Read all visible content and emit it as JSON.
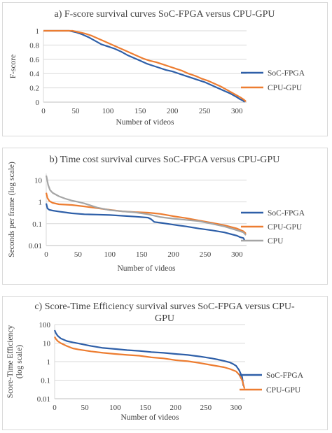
{
  "chart_data": [
    {
      "type": "line",
      "title": "a) F-score survival curves SoC-FPGA versus CPU-GPU",
      "xlabel": "Number of videos",
      "ylabel": "F-score",
      "xlim": [
        0,
        315
      ],
      "ylim": [
        0,
        1
      ],
      "y_scale": "linear",
      "x_ticks": [
        0,
        50,
        100,
        150,
        200,
        250,
        300
      ],
      "y_ticks": [
        0,
        0.2,
        0.4,
        0.6,
        0.8,
        1
      ],
      "y_tick_labels": [
        "0",
        "0.2",
        "0.4",
        "0.6",
        "0.8",
        "1"
      ],
      "grid": "horizontal",
      "legend": "right",
      "series": [
        {
          "name": "SoC-FPGA",
          "color": "#2e5fa8",
          "x": [
            0,
            40,
            50,
            60,
            70,
            80,
            90,
            100,
            110,
            120,
            130,
            140,
            150,
            160,
            170,
            180,
            190,
            200,
            210,
            220,
            230,
            240,
            250,
            260,
            270,
            280,
            290,
            300,
            305,
            310,
            312
          ],
          "y": [
            1,
            1,
            0.98,
            0.95,
            0.91,
            0.86,
            0.81,
            0.78,
            0.75,
            0.71,
            0.66,
            0.62,
            0.58,
            0.54,
            0.51,
            0.48,
            0.45,
            0.43,
            0.4,
            0.37,
            0.34,
            0.31,
            0.28,
            0.24,
            0.2,
            0.16,
            0.12,
            0.07,
            0.04,
            0.02,
            0
          ]
        },
        {
          "name": "CPU-GPU",
          "color": "#ed7d31",
          "x": [
            0,
            45,
            55,
            65,
            75,
            85,
            95,
            105,
            115,
            125,
            135,
            145,
            155,
            165,
            175,
            185,
            195,
            205,
            215,
            225,
            235,
            245,
            255,
            265,
            275,
            285,
            295,
            305,
            310,
            314
          ],
          "y": [
            1,
            1,
            0.98,
            0.96,
            0.93,
            0.89,
            0.85,
            0.81,
            0.77,
            0.73,
            0.69,
            0.65,
            0.61,
            0.58,
            0.56,
            0.53,
            0.5,
            0.47,
            0.44,
            0.4,
            0.37,
            0.33,
            0.3,
            0.26,
            0.22,
            0.17,
            0.12,
            0.07,
            0.04,
            0.01
          ]
        }
      ]
    },
    {
      "type": "line",
      "title": "b) Time cost survival curves SoC-FPGA versus CPU-GPU",
      "xlabel": "Number of videos",
      "ylabel": "Seconds per frame (log scale)",
      "xlim": [
        0,
        315
      ],
      "ylim": [
        0.01,
        20
      ],
      "y_scale": "log",
      "x_ticks": [
        0,
        50,
        100,
        150,
        200,
        250,
        300
      ],
      "y_ticks": [
        0.01,
        0.1,
        1,
        10
      ],
      "y_tick_labels": [
        "0.01",
        "0.1",
        "1",
        "10"
      ],
      "grid": "horizontal",
      "legend": "right",
      "series": [
        {
          "name": "SoC-FPGA",
          "color": "#2e5fa8",
          "x": [
            0,
            2,
            5,
            10,
            20,
            30,
            40,
            60,
            80,
            100,
            120,
            140,
            160,
            165,
            170,
            180,
            200,
            220,
            240,
            260,
            280,
            300,
            305,
            310,
            312
          ],
          "y": [
            0.85,
            0.5,
            0.43,
            0.4,
            0.36,
            0.33,
            0.3,
            0.27,
            0.26,
            0.25,
            0.23,
            0.21,
            0.19,
            0.16,
            0.12,
            0.11,
            0.09,
            0.075,
            0.06,
            0.05,
            0.04,
            0.028,
            0.024,
            0.022,
            0.017
          ]
        },
        {
          "name": "CPU-GPU",
          "color": "#ed7d31",
          "x": [
            0,
            2,
            5,
            10,
            20,
            30,
            40,
            60,
            80,
            100,
            120,
            140,
            160,
            170,
            180,
            200,
            220,
            240,
            260,
            280,
            300,
            310,
            314
          ],
          "y": [
            2.6,
            1.5,
            1.1,
            0.9,
            0.78,
            0.75,
            0.72,
            0.62,
            0.52,
            0.43,
            0.37,
            0.34,
            0.32,
            0.3,
            0.28,
            0.22,
            0.18,
            0.14,
            0.11,
            0.085,
            0.06,
            0.045,
            0.035
          ]
        },
        {
          "name": "CPU",
          "color": "#a5a5a5",
          "x": [
            0,
            1,
            3,
            6,
            10,
            20,
            30,
            40,
            50,
            60,
            80,
            100,
            120,
            140,
            160,
            180,
            200,
            220,
            240,
            260,
            280,
            300,
            310,
            314
          ],
          "y": [
            16,
            12,
            6,
            3.5,
            2.6,
            1.8,
            1.4,
            1.15,
            1.0,
            0.85,
            0.55,
            0.42,
            0.37,
            0.33,
            0.27,
            0.2,
            0.17,
            0.15,
            0.13,
            0.1,
            0.075,
            0.05,
            0.04,
            0.03
          ]
        }
      ]
    },
    {
      "type": "line",
      "title": "c) Score-Time Efficiency survival surves SoC-FPGA versus CPU-GPU",
      "xlabel": "Number of videos",
      "ylabel": "Score-Time Efficiency (log scale)",
      "xlim": [
        0,
        315
      ],
      "ylim": [
        0.01,
        100
      ],
      "y_scale": "log",
      "x_ticks": [
        0,
        50,
        100,
        150,
        200,
        250,
        300
      ],
      "y_ticks": [
        0.01,
        0.1,
        1,
        10,
        100
      ],
      "y_tick_labels": [
        "0.01",
        "0.1",
        "1",
        "10",
        "100"
      ],
      "grid": "horizontal",
      "legend": "right",
      "series": [
        {
          "name": "SoC-FPGA",
          "color": "#2e5fa8",
          "x": [
            0,
            2,
            5,
            10,
            20,
            30,
            40,
            60,
            80,
            100,
            120,
            140,
            160,
            180,
            200,
            220,
            240,
            260,
            270,
            280,
            290,
            295,
            300,
            305,
            310,
            312
          ],
          "y": [
            50,
            35,
            25,
            18,
            13,
            11,
            9.5,
            7,
            5.5,
            4.8,
            4.2,
            3.8,
            3.3,
            3.0,
            2.6,
            2.3,
            1.9,
            1.5,
            1.3,
            1.1,
            0.9,
            0.75,
            0.6,
            0.35,
            0.15,
            0.05
          ]
        },
        {
          "name": "CPU-GPU",
          "color": "#ed7d31",
          "x": [
            0,
            2,
            5,
            10,
            20,
            30,
            40,
            60,
            80,
            100,
            120,
            140,
            160,
            180,
            200,
            220,
            240,
            260,
            280,
            290,
            300,
            305,
            310,
            314
          ],
          "y": [
            22,
            17,
            13,
            10,
            7,
            5.2,
            4.5,
            3.6,
            3.0,
            2.6,
            2.3,
            2.1,
            1.7,
            1.5,
            1.2,
            1.05,
            0.85,
            0.65,
            0.5,
            0.4,
            0.3,
            0.2,
            0.1,
            0.035
          ]
        }
      ]
    }
  ]
}
